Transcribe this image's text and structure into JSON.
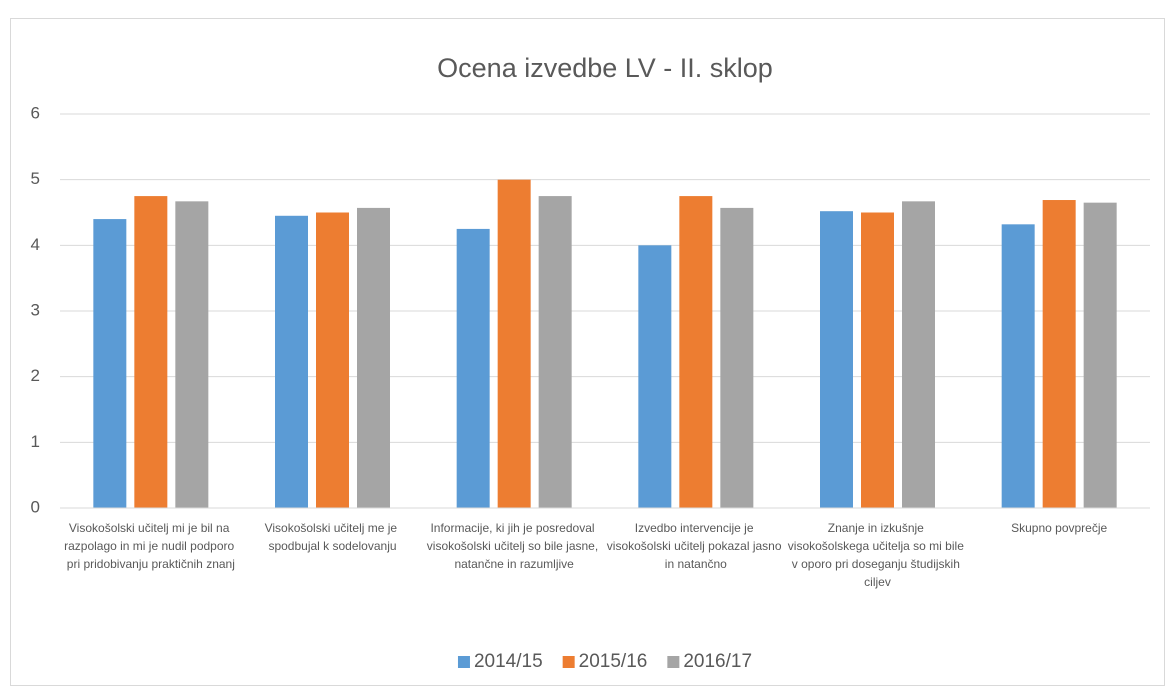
{
  "chart_data": {
    "type": "bar",
    "title": "Ocena izvedbe LV - II. sklop",
    "categories": [
      "Visokošolski učitelj mi je bil na razpolago in mi je nudil podporo pri pridobivanju praktičnih znanj",
      "Visokošolski učitelj me je spodbujal k sodelovanju",
      "Informacije, ki jih je posredoval visokošolski učitelj so bile jasne, natančne in razumljive",
      "Izvedbo intervencije je visokošolski učitelj pokazal jasno in natančno",
      "Znanje in izkušnje visokošolskega učitelja so mi bile v oporo pri doseganju študijskih ciljev",
      "Skupno povprečje"
    ],
    "series": [
      {
        "name": "2014/15",
        "color": "#5b9bd5",
        "values": [
          4.4,
          4.45,
          4.25,
          4.0,
          4.52,
          4.32
        ]
      },
      {
        "name": "2015/16",
        "color": "#ed7d31",
        "values": [
          4.75,
          4.5,
          5.0,
          4.75,
          4.5,
          4.69
        ]
      },
      {
        "name": "2016/17",
        "color": "#a5a5a5",
        "values": [
          4.67,
          4.57,
          4.75,
          4.57,
          4.67,
          4.65
        ]
      }
    ],
    "ylim": [
      0,
      6
    ],
    "yticks": [
      0,
      1,
      2,
      3,
      4,
      5,
      6
    ],
    "grid": true,
    "legend": "bottom"
  }
}
